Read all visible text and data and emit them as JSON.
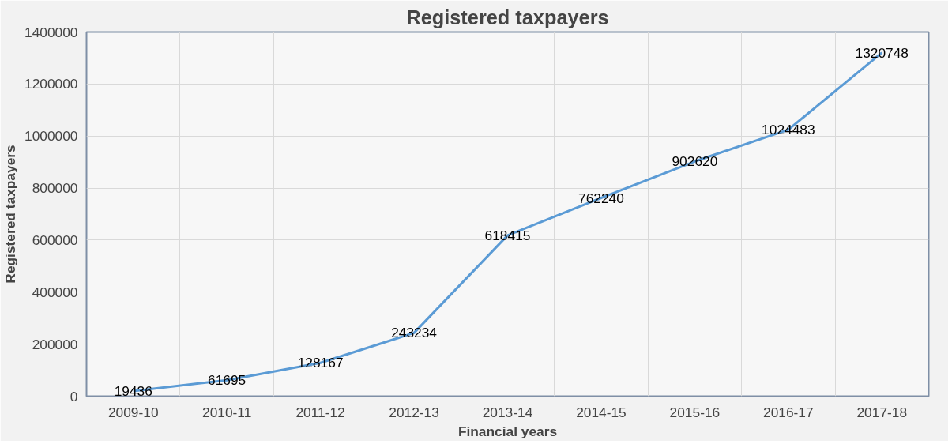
{
  "chart_data": {
    "type": "line",
    "title": "Registered taxpayers",
    "xlabel": "Financial years",
    "ylabel": "Registered taxpayers",
    "categories": [
      "2009-10",
      "2010-11",
      "2011-12",
      "2012-13",
      "2013-14",
      "2014-15",
      "2015-16",
      "2016-17",
      "2017-18"
    ],
    "series": [
      {
        "color": "#5b9bd5",
        "values": [
          19436,
          61695,
          128167,
          243234,
          618415,
          762240,
          902620,
          1024483,
          1320748
        ]
      }
    ],
    "ylim": [
      0,
      1400000
    ],
    "yticks": [
      0,
      200000,
      400000,
      600000,
      800000,
      1000000,
      1200000,
      1400000
    ],
    "grid": true,
    "data_labels": true,
    "marker": "none",
    "line_style": "solid"
  }
}
